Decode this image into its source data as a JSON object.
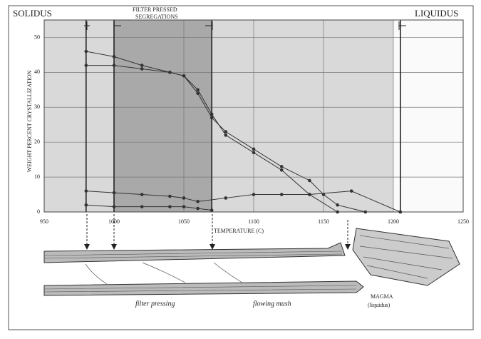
{
  "chart_data": {
    "type": "line",
    "annotations": {
      "solidus": "SOLIDUS",
      "filter": [
        "FILTER PRESSED",
        "SEGREGATIONS"
      ],
      "liquidus": "LIQUIDUS",
      "filter_pressing": "filter pressing",
      "flowing_mush": "flowing mush",
      "magma": "MAGMA",
      "liquidus_paren": "(liquidus)"
    },
    "ylabel": "WEIGHT PERCENT CRYSTALLIZATION",
    "xlabel": "TEMPERATURE (C)",
    "xlim": [
      950,
      1250
    ],
    "ylim": [
      0,
      55
    ],
    "xticks": [
      950,
      1000,
      1050,
      1100,
      1150,
      1200,
      1250
    ],
    "yticks": [
      0,
      10,
      20,
      30,
      40,
      50
    ],
    "grid": true,
    "shaded_regions": [
      {
        "from": 950,
        "to": 1200,
        "color": "#d9d9d9"
      },
      {
        "from": 1000,
        "to": 1070,
        "color": "#a9a9a9"
      }
    ],
    "reference_lines": [
      980,
      1000,
      1070,
      1205
    ],
    "series": [
      {
        "color": "#333",
        "x": [
          980,
          1000,
          1020,
          1040,
          1050,
          1060,
          1070,
          1080,
          1100,
          1120,
          1140,
          1150,
          1160,
          1180,
          1205
        ],
        "values": [
          42,
          42,
          41,
          40,
          39,
          34,
          27,
          23,
          18,
          13,
          9,
          5,
          2,
          0,
          0
        ]
      },
      {
        "color": "#333",
        "x": [
          980,
          1000,
          1020,
          1040,
          1050,
          1060,
          1070,
          1080,
          1100,
          1120,
          1140,
          1160
        ],
        "values": [
          46,
          44.5,
          42,
          40,
          39,
          35,
          28,
          22,
          17,
          12,
          5,
          0
        ]
      },
      {
        "color": "#333",
        "x": [
          980,
          1000,
          1020,
          1040,
          1050,
          1060,
          1080,
          1100,
          1120,
          1140,
          1170,
          1205
        ],
        "values": [
          6,
          5.5,
          5,
          4.5,
          4,
          3,
          4,
          5,
          5,
          5,
          6,
          0
        ]
      },
      {
        "color": "#333",
        "x": [
          980,
          1000,
          1020,
          1040,
          1050,
          1060,
          1070
        ],
        "values": [
          2,
          1.5,
          1.5,
          1.5,
          1.5,
          1,
          0.5
        ]
      }
    ]
  }
}
